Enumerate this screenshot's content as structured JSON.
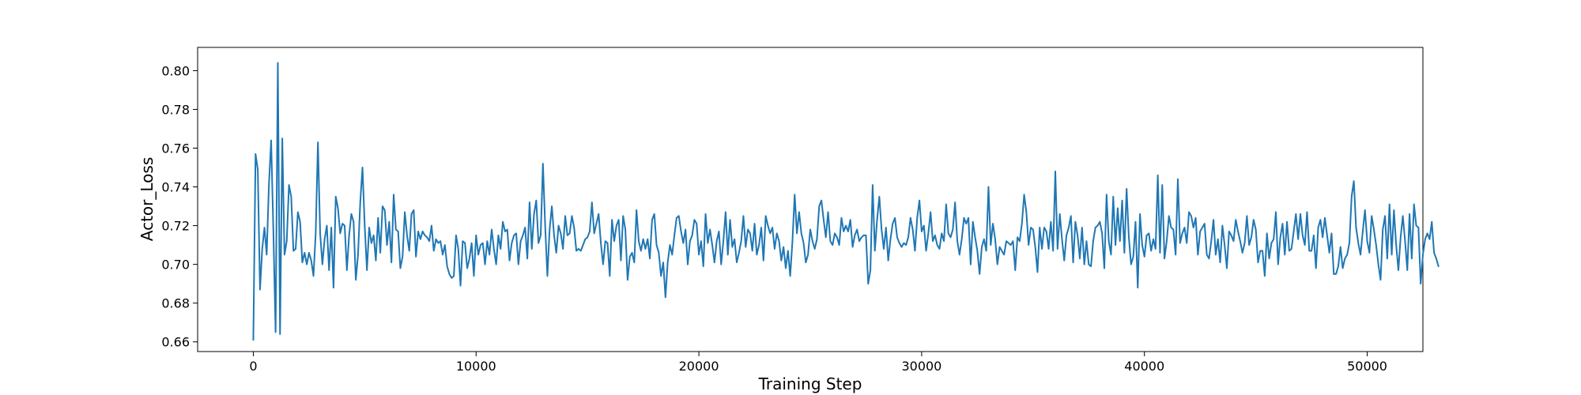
{
  "chart_data": {
    "type": "line",
    "title": "",
    "xlabel": "Training Step",
    "ylabel": "Actor_Loss",
    "xlim": [
      -2500,
      52500
    ],
    "ylim": [
      0.655,
      0.812
    ],
    "xticks": [
      0,
      10000,
      20000,
      30000,
      40000,
      50000
    ],
    "xtick_labels": [
      "0",
      "10000",
      "20000",
      "30000",
      "40000",
      "50000"
    ],
    "yticks": [
      0.66,
      0.68,
      0.7,
      0.72,
      0.74,
      0.76,
      0.78,
      0.8
    ],
    "ytick_labels": [
      "0.66",
      "0.68",
      "0.70",
      "0.72",
      "0.74",
      "0.76",
      "0.78",
      "0.80"
    ],
    "grid": false,
    "legend": "none",
    "colors": {
      "line": "#1f77b4",
      "axes": "#000000",
      "background": "#ffffff"
    },
    "series": [
      {
        "x_start": 0,
        "x_step": 100,
        "values": [
          0.661,
          0.757,
          0.749,
          0.687,
          0.708,
          0.719,
          0.705,
          0.741,
          0.764,
          0.717,
          0.665,
          0.804,
          0.664,
          0.765,
          0.705,
          0.712,
          0.741,
          0.735,
          0.707,
          0.708,
          0.727,
          0.722,
          0.701,
          0.706,
          0.7,
          0.706,
          0.702,
          0.694,
          0.716,
          0.763,
          0.716,
          0.7,
          0.713,
          0.72,
          0.697,
          0.719,
          0.688,
          0.735,
          0.729,
          0.716,
          0.721,
          0.72,
          0.697,
          0.715,
          0.726,
          0.722,
          0.692,
          0.705,
          0.732,
          0.75,
          0.72,
          0.697,
          0.719,
          0.711,
          0.715,
          0.702,
          0.724,
          0.706,
          0.73,
          0.728,
          0.71,
          0.722,
          0.701,
          0.736,
          0.718,
          0.717,
          0.698,
          0.704,
          0.727,
          0.715,
          0.707,
          0.726,
          0.728,
          0.704,
          0.717,
          0.713,
          0.717,
          0.715,
          0.714,
          0.712,
          0.72,
          0.707,
          0.713,
          0.711,
          0.712,
          0.705,
          0.71,
          0.699,
          0.695,
          0.693,
          0.694,
          0.715,
          0.708,
          0.689,
          0.712,
          0.711,
          0.698,
          0.703,
          0.711,
          0.694,
          0.715,
          0.705,
          0.71,
          0.711,
          0.7,
          0.712,
          0.705,
          0.718,
          0.708,
          0.7,
          0.715,
          0.708,
          0.722,
          0.717,
          0.718,
          0.702,
          0.711,
          0.715,
          0.716,
          0.7,
          0.712,
          0.715,
          0.719,
          0.703,
          0.732,
          0.708,
          0.726,
          0.733,
          0.711,
          0.715,
          0.752,
          0.72,
          0.694,
          0.718,
          0.73,
          0.715,
          0.706,
          0.72,
          0.716,
          0.708,
          0.725,
          0.715,
          0.716,
          0.725,
          0.719,
          0.707,
          0.708,
          0.707,
          0.71,
          0.713,
          0.714,
          0.717,
          0.732,
          0.716,
          0.721,
          0.726,
          0.711,
          0.7,
          0.712,
          0.711,
          0.694,
          0.723,
          0.712,
          0.72,
          0.723,
          0.702,
          0.725,
          0.718,
          0.692,
          0.704,
          0.706,
          0.701,
          0.728,
          0.712,
          0.707,
          0.713,
          0.708,
          0.713,
          0.703,
          0.723,
          0.726,
          0.71,
          0.706,
          0.694,
          0.701,
          0.683,
          0.701,
          0.71,
          0.705,
          0.715,
          0.724,
          0.725,
          0.717,
          0.711,
          0.718,
          0.7,
          0.712,
          0.715,
          0.723,
          0.721,
          0.705,
          0.712,
          0.699,
          0.726,
          0.711,
          0.718,
          0.71,
          0.701,
          0.712,
          0.717,
          0.7,
          0.712,
          0.727,
          0.705,
          0.723,
          0.709,
          0.713,
          0.701,
          0.706,
          0.712,
          0.725,
          0.709,
          0.718,
          0.716,
          0.707,
          0.721,
          0.705,
          0.71,
          0.719,
          0.702,
          0.725,
          0.72,
          0.716,
          0.719,
          0.708,
          0.716,
          0.712,
          0.702,
          0.709,
          0.698,
          0.707,
          0.694,
          0.712,
          0.736,
          0.716,
          0.727,
          0.716,
          0.711,
          0.701,
          0.705,
          0.718,
          0.712,
          0.708,
          0.713,
          0.73,
          0.733,
          0.723,
          0.714,
          0.727,
          0.712,
          0.71,
          0.716,
          0.714,
          0.71,
          0.724,
          0.717,
          0.72,
          0.717,
          0.723,
          0.709,
          0.715,
          0.718,
          0.712,
          0.714,
          0.715,
          0.715,
          0.69,
          0.697,
          0.741,
          0.707,
          0.723,
          0.735,
          0.718,
          0.708,
          0.719,
          0.702,
          0.713,
          0.721,
          0.724,
          0.714,
          0.711,
          0.709,
          0.711,
          0.71,
          0.714,
          0.724,
          0.718,
          0.707,
          0.724,
          0.733,
          0.717,
          0.72,
          0.707,
          0.716,
          0.727,
          0.712,
          0.715,
          0.71,
          0.708,
          0.716,
          0.712,
          0.731,
          0.716,
          0.714,
          0.718,
          0.732,
          0.712,
          0.705,
          0.713,
          0.724,
          0.721,
          0.724,
          0.7,
          0.722,
          0.714,
          0.707,
          0.695,
          0.709,
          0.713,
          0.707,
          0.74,
          0.71,
          0.721,
          0.713,
          0.7,
          0.709,
          0.707,
          0.705,
          0.712,
          0.711,
          0.71,
          0.712,
          0.697,
          0.714,
          0.712,
          0.721,
          0.736,
          0.727,
          0.71,
          0.719,
          0.718,
          0.709,
          0.696,
          0.719,
          0.708,
          0.719,
          0.717,
          0.708,
          0.722,
          0.707,
          0.748,
          0.708,
          0.726,
          0.713,
          0.702,
          0.715,
          0.719,
          0.725,
          0.701,
          0.722,
          0.715,
          0.703,
          0.719,
          0.7,
          0.712,
          0.7,
          0.699,
          0.712,
          0.719,
          0.72,
          0.722,
          0.716,
          0.698,
          0.736,
          0.712,
          0.705,
          0.735,
          0.71,
          0.729,
          0.712,
          0.733,
          0.706,
          0.739,
          0.714,
          0.7,
          0.704,
          0.722,
          0.688,
          0.726,
          0.71,
          0.704,
          0.715,
          0.716,
          0.707,
          0.713,
          0.708,
          0.746,
          0.706,
          0.741,
          0.703,
          0.712,
          0.725,
          0.719,
          0.718,
          0.705,
          0.744,
          0.711,
          0.716,
          0.719,
          0.711,
          0.727,
          0.725,
          0.719,
          0.724,
          0.705,
          0.717,
          0.719,
          0.721,
          0.705,
          0.703,
          0.712,
          0.723,
          0.705,
          0.713,
          0.701,
          0.72,
          0.71,
          0.698,
          0.717,
          0.715,
          0.712,
          0.723,
          0.717,
          0.712,
          0.706,
          0.711,
          0.725,
          0.71,
          0.714,
          0.723,
          0.718,
          0.701,
          0.707,
          0.707,
          0.694,
          0.716,
          0.703,
          0.711,
          0.713,
          0.727,
          0.7,
          0.714,
          0.721,
          0.705,
          0.722,
          0.707,
          0.708,
          0.717,
          0.726,
          0.713,
          0.726,
          0.715,
          0.71,
          0.727,
          0.707,
          0.707,
          0.715,
          0.698,
          0.719,
          0.723,
          0.714,
          0.724,
          0.715,
          0.706,
          0.716,
          0.695,
          0.695,
          0.699,
          0.709,
          0.698,
          0.703,
          0.705,
          0.711,
          0.735,
          0.743,
          0.719,
          0.711,
          0.705,
          0.717,
          0.728,
          0.712,
          0.706,
          0.725,
          0.718,
          0.71,
          0.7,
          0.692,
          0.718,
          0.725,
          0.703,
          0.731,
          0.705,
          0.728,
          0.71,
          0.697,
          0.714,
          0.725,
          0.712,
          0.697,
          0.726,
          0.703,
          0.731,
          0.72,
          0.719,
          0.69,
          0.705,
          0.713,
          0.716,
          0.713,
          0.722,
          0.706,
          0.703,
          0.699
        ]
      }
    ]
  }
}
